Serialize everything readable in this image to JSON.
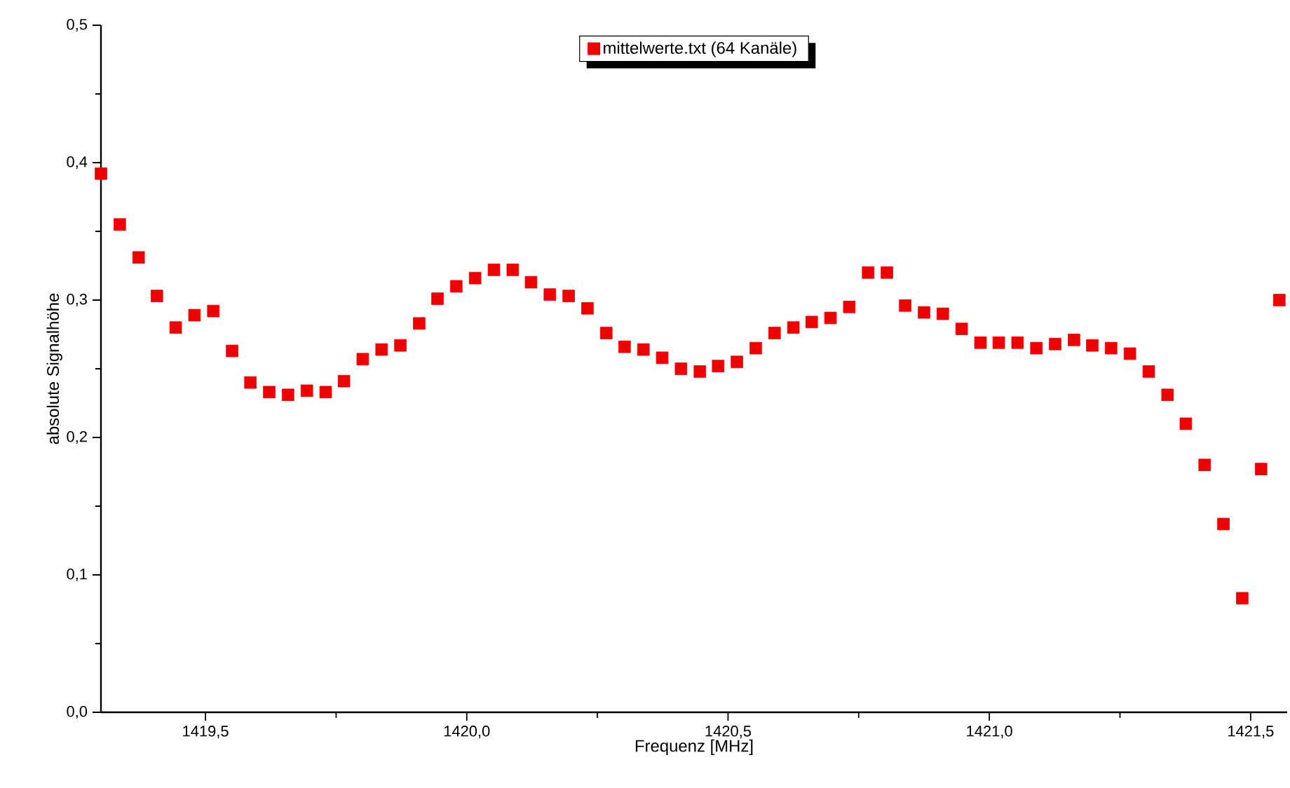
{
  "chart_data": {
    "type": "scatter",
    "xlabel": "Frequenz [MHz]",
    "ylabel": "absolute Signalhöhe",
    "legend": "top",
    "marker": "square",
    "xlim": [
      1419.3,
      1421.57
    ],
    "ylim": [
      0,
      0.5
    ],
    "xticks": [
      {
        "value": 1419.5,
        "label": "1419,5"
      },
      {
        "value": 1420.0,
        "label": "1420,0"
      },
      {
        "value": 1420.5,
        "label": "1420,5"
      },
      {
        "value": 1421.0,
        "label": "1421,0"
      },
      {
        "value": 1421.5,
        "label": "1421,5"
      }
    ],
    "yticks": [
      {
        "value": 0,
        "label": "0,0"
      },
      {
        "value": 0.1,
        "label": "0,1"
      },
      {
        "value": 0.2,
        "label": "0,2"
      },
      {
        "value": 0.3,
        "label": "0,3"
      },
      {
        "value": 0.4,
        "label": "0,4"
      },
      {
        "value": 0.5,
        "label": "0,5"
      }
    ],
    "series": [
      {
        "name": "mittelwerte.txt (64 Kanäle)",
        "color": "#ee0000",
        "x": [
          1419.3,
          1419.336,
          1419.372,
          1419.407,
          1419.443,
          1419.479,
          1419.515,
          1419.551,
          1419.586,
          1419.622,
          1419.658,
          1419.694,
          1419.73,
          1419.765,
          1419.801,
          1419.837,
          1419.873,
          1419.909,
          1419.944,
          1419.98,
          1420.016,
          1420.052,
          1420.088,
          1420.123,
          1420.159,
          1420.195,
          1420.231,
          1420.267,
          1420.302,
          1420.338,
          1420.374,
          1420.41,
          1420.446,
          1420.481,
          1420.517,
          1420.553,
          1420.589,
          1420.625,
          1420.66,
          1420.696,
          1420.732,
          1420.768,
          1420.804,
          1420.839,
          1420.875,
          1420.911,
          1420.947,
          1420.983,
          1421.018,
          1421.054,
          1421.09,
          1421.126,
          1421.162,
          1421.197,
          1421.233,
          1421.269,
          1421.305,
          1421.341,
          1421.376,
          1421.412,
          1421.448,
          1421.484,
          1421.52,
          1421.555
        ],
        "values": [
          0.392,
          0.355,
          0.331,
          0.303,
          0.28,
          0.289,
          0.292,
          0.263,
          0.24,
          0.233,
          0.231,
          0.234,
          0.233,
          0.241,
          0.257,
          0.264,
          0.267,
          0.283,
          0.301,
          0.31,
          0.316,
          0.322,
          0.322,
          0.313,
          0.304,
          0.303,
          0.294,
          0.276,
          0.266,
          0.264,
          0.258,
          0.25,
          0.248,
          0.252,
          0.255,
          0.265,
          0.276,
          0.28,
          0.284,
          0.287,
          0.295,
          0.32,
          0.32,
          0.296,
          0.291,
          0.29,
          0.279,
          0.269,
          0.269,
          0.269,
          0.265,
          0.268,
          0.271,
          0.267,
          0.265,
          0.261,
          0.248,
          0.231,
          0.21,
          0.18,
          0.137,
          0.083,
          0.177,
          0.3
        ]
      }
    ]
  }
}
